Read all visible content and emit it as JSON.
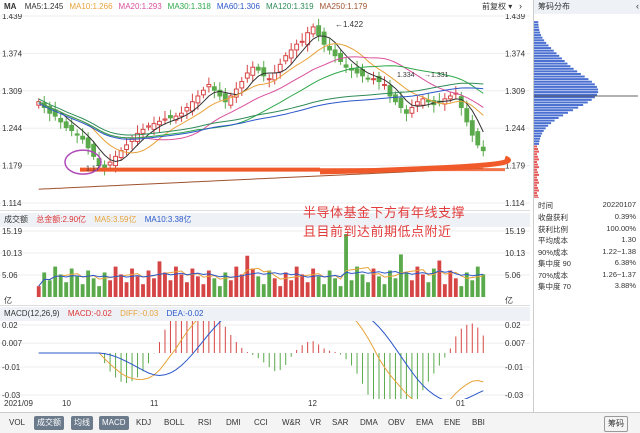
{
  "main_header": {
    "ma_label": "MA",
    "ma_items": [
      {
        "text": "MA5:1.245",
        "color": "#333333"
      },
      {
        "text": "MA10:1.266",
        "color": "#e8a33a"
      },
      {
        "text": "MA20:1.293",
        "color": "#d94f9c"
      },
      {
        "text": "MA30:1.318",
        "color": "#2ea84a"
      },
      {
        "text": "MA60:1.306",
        "color": "#2b57c9"
      },
      {
        "text": "MA120:1.319",
        "color": "#2e8b57"
      },
      {
        "text": "MA250:1.179",
        "color": "#a0522d"
      }
    ],
    "adjust_label": "前复权",
    "chip_title": "筹码分布"
  },
  "price_axis": {
    "left_labels": [
      "1.439",
      "1.374",
      "1.309",
      "1.244",
      "1.179",
      "1.114"
    ],
    "right_labels": [
      "1.439",
      "1.374",
      "1.309",
      "1.244",
      "1.179",
      "1.114"
    ],
    "high_marker": "1.422",
    "low_marker": "1.17",
    "mid_markers": [
      "1.334",
      "1.331"
    ]
  },
  "volume_header": {
    "title": "成交额",
    "total": "总金额:2.90亿",
    "ma5": "MA5:3.59亿",
    "ma10": "MA10:3.38亿",
    "colors": {
      "total": "#d33",
      "ma5": "#e8a33a",
      "ma10": "#2b57c9"
    },
    "left_labels": [
      "15.19",
      "10.13",
      "5.06"
    ],
    "right_labels": [
      "15.19",
      "10.13",
      "5.06"
    ],
    "unit": "亿"
  },
  "macd_header": {
    "title": "MACD(12,26,9)",
    "macd": "MACD:-0.02",
    "diff": "DIFF:-0.03",
    "dea": "DEA:-0.02",
    "left_labels": [
      "0.02",
      "0.007",
      "-0.01",
      "-0.03"
    ],
    "right_labels": [
      "0.02",
      "0.007",
      "-0.01",
      "-0.03"
    ]
  },
  "date_axis": [
    "2021/09",
    "10",
    "11",
    "12",
    "01"
  ],
  "annotation": {
    "line1": "半导体基金下方有年线支撑",
    "line2": "且目前到达前期低点附近"
  },
  "right_panel": {
    "date_label": "时间",
    "date_value": "20220107",
    "rows": [
      {
        "k": "收盘获利",
        "v": "0.39%"
      },
      {
        "k": "获利比例",
        "v": "100.00%"
      },
      {
        "k": "平均成本",
        "v": "1.30"
      },
      {
        "k": "90%成本",
        "v": "1.22~1.38"
      },
      {
        "k": "集中度 90",
        "v": "6.38%"
      },
      {
        "k": "70%成本",
        "v": "1.26~1.37"
      },
      {
        "k": "集中度 70",
        "v": "3.88%"
      }
    ]
  },
  "toolbar": {
    "items": [
      "VOL",
      "成交额",
      "均线",
      "MACD",
      "KDJ",
      "BOLL",
      "RSI",
      "DMI",
      "CCI",
      "W&R",
      "VR",
      "SAR",
      "DMA",
      "OBV",
      "EMA",
      "ENE",
      "BBI"
    ],
    "active": [
      "成交额",
      "均线",
      "MACD"
    ],
    "right_button": "筹码"
  },
  "colors": {
    "up": "#d64545",
    "down": "#5aaa4c",
    "support": "#f05a2a"
  }
}
